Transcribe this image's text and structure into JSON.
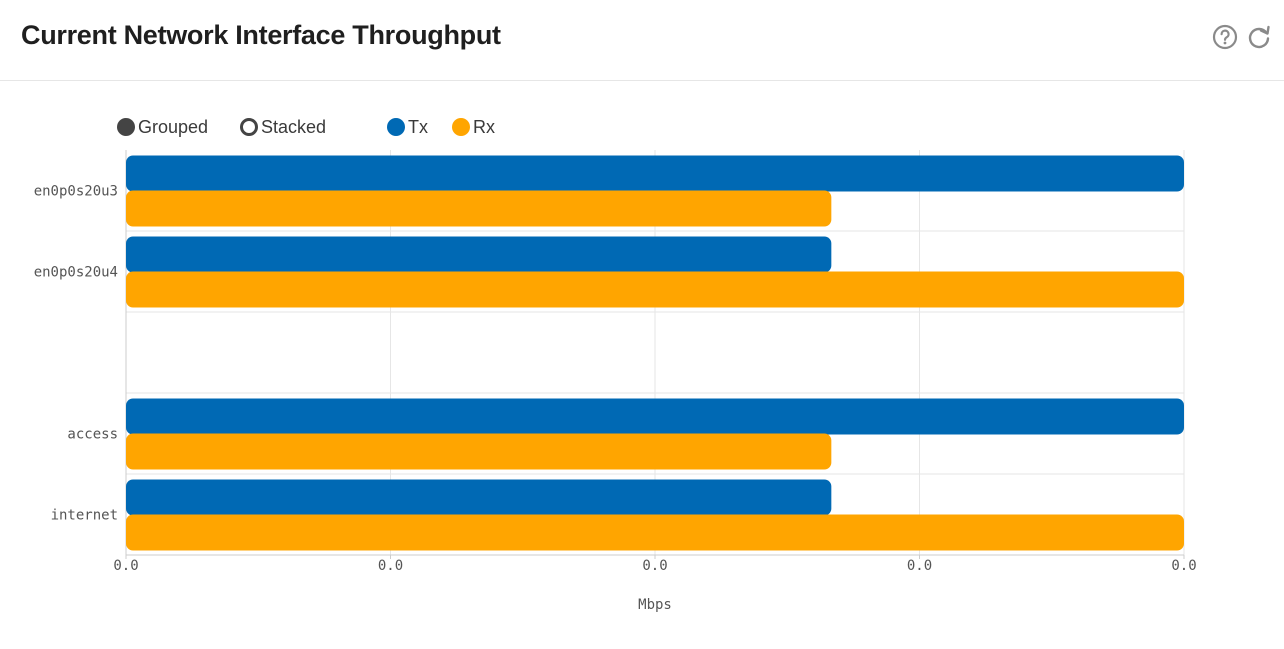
{
  "header": {
    "title": "Current Network Interface Throughput",
    "help_icon": "help-circle-icon",
    "refresh_icon": "refresh-icon"
  },
  "controls": {
    "grouped_label": "Grouped",
    "stacked_label": "Stacked",
    "selected_mode": "Grouped"
  },
  "colors": {
    "tx": "#0069b4",
    "rx": "#ffa500",
    "grid": "#e6e6e6",
    "axis": "#cccccc",
    "text": "#555555"
  },
  "chart_data": {
    "type": "bar",
    "orientation": "horizontal",
    "categories": [
      "en0p0s20u3",
      "en0p0s20u4",
      "",
      "access",
      "internet"
    ],
    "series": [
      {
        "name": "Tx",
        "values": [
          0.03,
          0.02,
          null,
          0.03,
          0.02
        ]
      },
      {
        "name": "Rx",
        "values": [
          0.02,
          0.03,
          null,
          0.02,
          0.03
        ]
      }
    ],
    "xlabel": "Mbps",
    "ylabel": "",
    "xlim": [
      0,
      0.03
    ],
    "xticks": [
      0,
      0.0075,
      0.015,
      0.0225,
      0.03
    ],
    "xtick_labels": [
      "0.0",
      "0.0",
      "0.0",
      "0.0",
      "0.0"
    ],
    "grid": true,
    "legend_position": "top-left"
  }
}
